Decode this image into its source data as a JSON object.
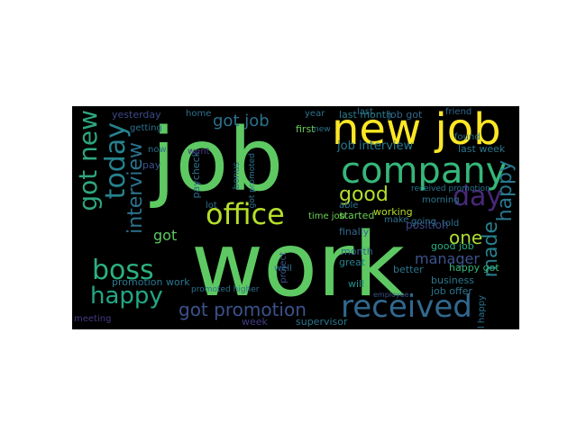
{
  "words": [
    {
      "text": "job",
      "color": "#5ec962"
    },
    {
      "text": "work",
      "color": "#5ec962"
    },
    {
      "text": "new job",
      "color": "#fde725"
    },
    {
      "text": "company",
      "color": "#35b779"
    },
    {
      "text": "office",
      "color": "#b5de2b"
    },
    {
      "text": "boss",
      "color": "#2cb17e"
    },
    {
      "text": "received",
      "color": "#31688e"
    },
    {
      "text": "got new",
      "color": "#2ea67e"
    },
    {
      "text": "today",
      "color": "#26828e"
    },
    {
      "text": "happy",
      "color": "#22a884"
    },
    {
      "text": "day",
      "color": "#482878"
    },
    {
      "text": "got promotion",
      "color": "#3b528b"
    },
    {
      "text": "interview",
      "color": "#2c728e"
    },
    {
      "text": "got job",
      "color": "#2c738e"
    },
    {
      "text": "made",
      "color": "#27808e"
    },
    {
      "text": "happy",
      "color": "#2a788e"
    },
    {
      "text": "good",
      "color": "#b5de2b"
    },
    {
      "text": "one",
      "color": "#addc30"
    },
    {
      "text": "manager",
      "color": "#3b528b"
    },
    {
      "text": "job interview",
      "color": "#29798e"
    },
    {
      "text": "last month",
      "color": "#287d8e"
    },
    {
      "text": "last week",
      "color": "#2a778e"
    },
    {
      "text": "got",
      "color": "#5ec962"
    },
    {
      "text": "promotion work",
      "color": "#2a788e"
    },
    {
      "text": "yesterday",
      "color": "#3e4989"
    },
    {
      "text": "job got",
      "color": "#31688e"
    },
    {
      "text": "friend",
      "color": "#31688e"
    },
    {
      "text": "found",
      "color": "#2c728e"
    },
    {
      "text": "position",
      "color": "#3e4989"
    },
    {
      "text": "good job",
      "color": "#29af7f"
    },
    {
      "text": "happy got",
      "color": "#35b779"
    },
    {
      "text": "business",
      "color": "#2a788e"
    },
    {
      "text": "job offer",
      "color": "#2c728e"
    },
    {
      "text": "supervisor",
      "color": "#2a788e"
    },
    {
      "text": "week",
      "color": "#433e85"
    },
    {
      "text": "first",
      "color": "#6ccd5a"
    },
    {
      "text": "paycheck",
      "color": "#2c728e"
    },
    {
      "text": "bonus",
      "color": "#2c728e"
    },
    {
      "text": "pay",
      "color": "#3b528b"
    },
    {
      "text": "went",
      "color": "#443983"
    },
    {
      "text": "lot",
      "color": "#2c728e"
    },
    {
      "text": "finally",
      "color": "#31688e"
    },
    {
      "text": "working",
      "color": "#b5de2b"
    },
    {
      "text": "started",
      "color": "#6ccd5a"
    },
    {
      "text": "better",
      "color": "#2a788e"
    },
    {
      "text": "will",
      "color": "#21918c"
    },
    {
      "text": "great",
      "color": "#26828e"
    },
    {
      "text": "month",
      "color": "#31688e"
    },
    {
      "text": "employee",
      "color": "#3b528b"
    },
    {
      "text": "able",
      "color": "#2c728e"
    },
    {
      "text": "make",
      "color": "#2c728e"
    },
    {
      "text": "told",
      "color": "#2c728e"
    },
    {
      "text": "morning",
      "color": "#2a788e"
    },
    {
      "text": "home",
      "color": "#2c728e"
    },
    {
      "text": "year",
      "color": "#2c728e"
    },
    {
      "text": "time job",
      "color": "#6ece58"
    },
    {
      "text": "well",
      "color": "#2c728e"
    },
    {
      "text": "getting",
      "color": "#2c728e"
    },
    {
      "text": "got promoted",
      "color": "#2c728e"
    },
    {
      "text": "promoted higher",
      "color": "#2c728e"
    },
    {
      "text": "meeting",
      "color": "#443983"
    },
    {
      "text": "feel happy",
      "color": "#2c728e"
    },
    {
      "text": "going",
      "color": "#2c728e"
    },
    {
      "text": "project",
      "color": "#3b528b"
    },
    {
      "text": "received promotion",
      "color": "#2c728e"
    },
    {
      "text": "last",
      "color": "#2c728e"
    },
    {
      "text": "now",
      "color": "#2c728e"
    },
    {
      "text": "new",
      "color": "#2c728e"
    }
  ]
}
